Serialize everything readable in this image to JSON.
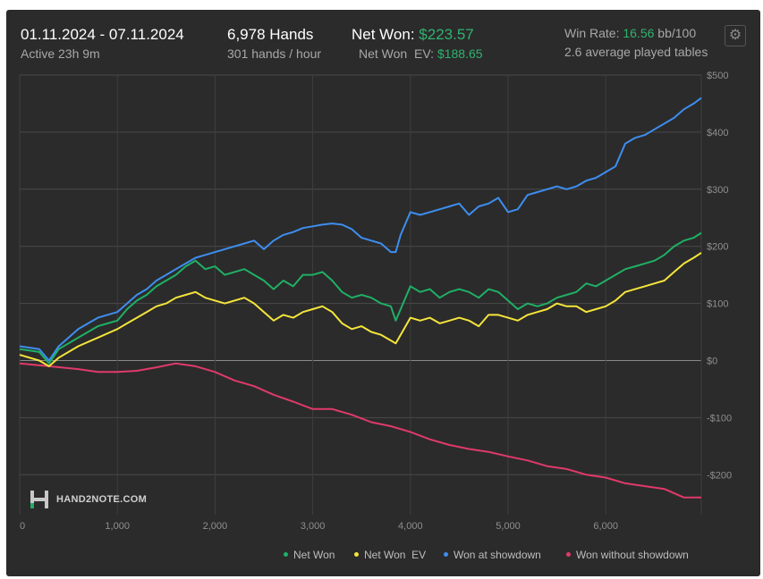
{
  "header": {
    "date_range": "01.11.2024 - 07.11.2024",
    "active": "Active 23h 9m",
    "hands": "6,978 Hands",
    "hands_per_hour": "301 hands / hour",
    "net_won_label": "Net Won:",
    "net_won_value": "$223.57",
    "net_won_ev_label": "Net Won  EV:",
    "net_won_ev_value": "$188.65",
    "win_rate_label": "Win Rate:",
    "win_rate_value": "16.56",
    "win_rate_unit": "bb/100",
    "avg_tables": "2.6 average played tables"
  },
  "icons": {
    "settings": "gear-icon",
    "logo": "hand2note-logo-icon"
  },
  "logo_text": "HAND2NOTE.COM",
  "colors": {
    "net_won": "#1fb065",
    "net_won_ev": "#f5e53b",
    "showdown": "#3d8ef0",
    "non_showdown": "#e03a6a",
    "accent_green": "#2fb36f"
  },
  "chart_data": {
    "type": "line",
    "xlim": [
      0,
      6978
    ],
    "ylim": [
      -270,
      500
    ],
    "x_ticks": [
      0,
      1000,
      2000,
      3000,
      4000,
      5000,
      6000
    ],
    "x_tick_labels": [
      "0",
      "1,000",
      "2,000",
      "3,000",
      "4,000",
      "5,000",
      "6,000"
    ],
    "y_ticks": [
      500,
      400,
      300,
      200,
      100,
      0,
      -100,
      -200
    ],
    "y_tick_labels": [
      "$500",
      "$400",
      "$300",
      "$200",
      "$100",
      "$0",
      "-$100",
      "-$200"
    ],
    "grid": true,
    "legend_position": "bottom-right",
    "series": [
      {
        "name": "Net Won",
        "color_key": "net_won",
        "points": [
          [
            0,
            20
          ],
          [
            200,
            15
          ],
          [
            300,
            -5
          ],
          [
            400,
            20
          ],
          [
            600,
            40
          ],
          [
            800,
            60
          ],
          [
            1000,
            70
          ],
          [
            1100,
            90
          ],
          [
            1200,
            105
          ],
          [
            1300,
            115
          ],
          [
            1400,
            130
          ],
          [
            1500,
            140
          ],
          [
            1600,
            150
          ],
          [
            1700,
            165
          ],
          [
            1800,
            175
          ],
          [
            1900,
            160
          ],
          [
            2000,
            165
          ],
          [
            2100,
            150
          ],
          [
            2300,
            160
          ],
          [
            2400,
            150
          ],
          [
            2500,
            140
          ],
          [
            2600,
            125
          ],
          [
            2700,
            140
          ],
          [
            2800,
            130
          ],
          [
            2900,
            150
          ],
          [
            3000,
            150
          ],
          [
            3100,
            155
          ],
          [
            3200,
            140
          ],
          [
            3300,
            120
          ],
          [
            3400,
            110
          ],
          [
            3500,
            115
          ],
          [
            3600,
            110
          ],
          [
            3700,
            100
          ],
          [
            3800,
            95
          ],
          [
            3850,
            70
          ],
          [
            3900,
            90
          ],
          [
            4000,
            130
          ],
          [
            4100,
            120
          ],
          [
            4200,
            125
          ],
          [
            4300,
            110
          ],
          [
            4400,
            120
          ],
          [
            4500,
            125
          ],
          [
            4600,
            120
          ],
          [
            4700,
            110
          ],
          [
            4800,
            125
          ],
          [
            4900,
            120
          ],
          [
            5000,
            105
          ],
          [
            5100,
            90
          ],
          [
            5200,
            100
          ],
          [
            5300,
            95
          ],
          [
            5400,
            100
          ],
          [
            5500,
            110
          ],
          [
            5600,
            115
          ],
          [
            5700,
            120
          ],
          [
            5800,
            135
          ],
          [
            5900,
            130
          ],
          [
            6000,
            140
          ],
          [
            6100,
            150
          ],
          [
            6200,
            160
          ],
          [
            6300,
            165
          ],
          [
            6400,
            170
          ],
          [
            6500,
            175
          ],
          [
            6600,
            185
          ],
          [
            6700,
            200
          ],
          [
            6800,
            210
          ],
          [
            6900,
            215
          ],
          [
            6978,
            223.57
          ]
        ]
      },
      {
        "name": "Net Won  EV",
        "color_key": "net_won_ev",
        "points": [
          [
            0,
            10
          ],
          [
            200,
            0
          ],
          [
            300,
            -10
          ],
          [
            400,
            5
          ],
          [
            600,
            25
          ],
          [
            800,
            40
          ],
          [
            1000,
            55
          ],
          [
            1100,
            65
          ],
          [
            1200,
            75
          ],
          [
            1300,
            85
          ],
          [
            1400,
            95
          ],
          [
            1500,
            100
          ],
          [
            1600,
            110
          ],
          [
            1700,
            115
          ],
          [
            1800,
            120
          ],
          [
            1900,
            110
          ],
          [
            2000,
            105
          ],
          [
            2100,
            100
          ],
          [
            2300,
            110
          ],
          [
            2400,
            100
          ],
          [
            2500,
            85
          ],
          [
            2600,
            70
          ],
          [
            2700,
            80
          ],
          [
            2800,
            75
          ],
          [
            2900,
            85
          ],
          [
            3000,
            90
          ],
          [
            3100,
            95
          ],
          [
            3200,
            85
          ],
          [
            3300,
            65
          ],
          [
            3400,
            55
          ],
          [
            3500,
            60
          ],
          [
            3600,
            50
          ],
          [
            3700,
            45
          ],
          [
            3800,
            35
          ],
          [
            3850,
            30
          ],
          [
            3900,
            45
          ],
          [
            4000,
            75
          ],
          [
            4100,
            70
          ],
          [
            4200,
            75
          ],
          [
            4300,
            65
          ],
          [
            4400,
            70
          ],
          [
            4500,
            75
          ],
          [
            4600,
            70
          ],
          [
            4700,
            60
          ],
          [
            4800,
            80
          ],
          [
            4900,
            80
          ],
          [
            5000,
            75
          ],
          [
            5100,
            70
          ],
          [
            5200,
            80
          ],
          [
            5300,
            85
          ],
          [
            5400,
            90
          ],
          [
            5500,
            100
          ],
          [
            5600,
            95
          ],
          [
            5700,
            95
          ],
          [
            5800,
            85
          ],
          [
            5900,
            90
          ],
          [
            6000,
            95
          ],
          [
            6100,
            105
          ],
          [
            6200,
            120
          ],
          [
            6300,
            125
          ],
          [
            6400,
            130
          ],
          [
            6500,
            135
          ],
          [
            6600,
            140
          ],
          [
            6700,
            155
          ],
          [
            6800,
            170
          ],
          [
            6900,
            180
          ],
          [
            6978,
            188.65
          ]
        ]
      },
      {
        "name": "Won at showdown",
        "color_key": "showdown",
        "points": [
          [
            0,
            25
          ],
          [
            200,
            20
          ],
          [
            300,
            0
          ],
          [
            400,
            25
          ],
          [
            600,
            55
          ],
          [
            800,
            75
          ],
          [
            1000,
            85
          ],
          [
            1100,
            100
          ],
          [
            1200,
            115
          ],
          [
            1300,
            125
          ],
          [
            1400,
            140
          ],
          [
            1500,
            150
          ],
          [
            1600,
            160
          ],
          [
            1700,
            170
          ],
          [
            1800,
            180
          ],
          [
            1900,
            185
          ],
          [
            2000,
            190
          ],
          [
            2100,
            195
          ],
          [
            2300,
            205
          ],
          [
            2400,
            210
          ],
          [
            2500,
            195
          ],
          [
            2600,
            210
          ],
          [
            2700,
            220
          ],
          [
            2800,
            225
          ],
          [
            2900,
            232
          ],
          [
            3000,
            235
          ],
          [
            3100,
            238
          ],
          [
            3200,
            240
          ],
          [
            3300,
            238
          ],
          [
            3400,
            230
          ],
          [
            3500,
            215
          ],
          [
            3600,
            210
          ],
          [
            3700,
            205
          ],
          [
            3800,
            190
          ],
          [
            3850,
            190
          ],
          [
            3900,
            220
          ],
          [
            4000,
            260
          ],
          [
            4100,
            255
          ],
          [
            4200,
            260
          ],
          [
            4300,
            265
          ],
          [
            4400,
            270
          ],
          [
            4500,
            275
          ],
          [
            4600,
            255
          ],
          [
            4700,
            270
          ],
          [
            4800,
            275
          ],
          [
            4900,
            285
          ],
          [
            5000,
            260
          ],
          [
            5100,
            265
          ],
          [
            5200,
            290
          ],
          [
            5300,
            295
          ],
          [
            5400,
            300
          ],
          [
            5500,
            305
          ],
          [
            5600,
            300
          ],
          [
            5700,
            305
          ],
          [
            5800,
            315
          ],
          [
            5900,
            320
          ],
          [
            6000,
            330
          ],
          [
            6100,
            340
          ],
          [
            6200,
            380
          ],
          [
            6300,
            390
          ],
          [
            6400,
            395
          ],
          [
            6500,
            405
          ],
          [
            6600,
            415
          ],
          [
            6700,
            425
          ],
          [
            6800,
            440
          ],
          [
            6900,
            450
          ],
          [
            6978,
            460
          ]
        ]
      },
      {
        "name": "Won without showdown",
        "color_key": "non_showdown",
        "points": [
          [
            0,
            -5
          ],
          [
            300,
            -10
          ],
          [
            600,
            -15
          ],
          [
            800,
            -20
          ],
          [
            1000,
            -20
          ],
          [
            1200,
            -18
          ],
          [
            1400,
            -12
          ],
          [
            1600,
            -5
          ],
          [
            1800,
            -10
          ],
          [
            2000,
            -20
          ],
          [
            2200,
            -35
          ],
          [
            2400,
            -45
          ],
          [
            2600,
            -60
          ],
          [
            2800,
            -72
          ],
          [
            3000,
            -85
          ],
          [
            3200,
            -85
          ],
          [
            3400,
            -95
          ],
          [
            3600,
            -108
          ],
          [
            3800,
            -115
          ],
          [
            4000,
            -125
          ],
          [
            4200,
            -138
          ],
          [
            4400,
            -148
          ],
          [
            4600,
            -155
          ],
          [
            4800,
            -160
          ],
          [
            5000,
            -168
          ],
          [
            5200,
            -175
          ],
          [
            5400,
            -185
          ],
          [
            5600,
            -190
          ],
          [
            5800,
            -200
          ],
          [
            6000,
            -205
          ],
          [
            6200,
            -215
          ],
          [
            6400,
            -220
          ],
          [
            6600,
            -225
          ],
          [
            6800,
            -240
          ],
          [
            6978,
            -240
          ]
        ]
      }
    ]
  }
}
